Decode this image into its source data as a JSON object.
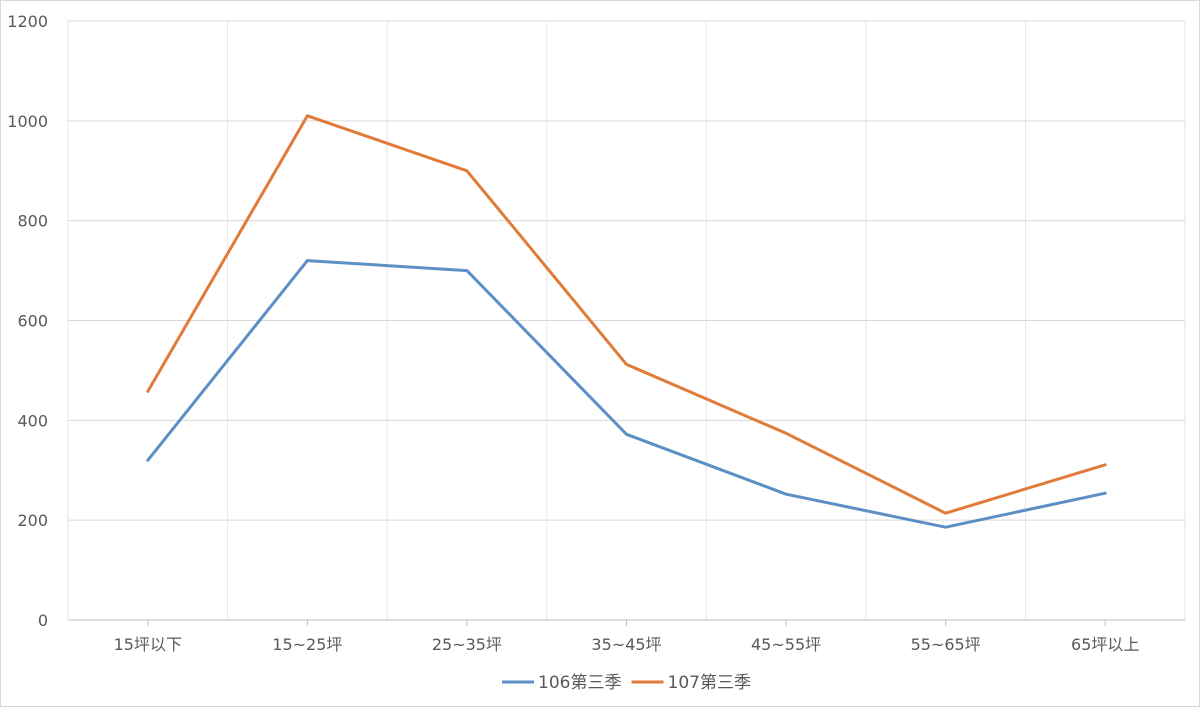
{
  "chart_data": {
    "type": "line",
    "categories": [
      "15坪以下",
      "15~25坪",
      "25~35坪",
      "35~45坪",
      "45~55坪",
      "55~65坪",
      "65坪以上"
    ],
    "series": [
      {
        "name": "106第三季",
        "color": "#5b8fc5",
        "values": [
          320,
          720,
          700,
          372,
          252,
          186,
          254
        ]
      },
      {
        "name": "107第三季",
        "color": "#e07b39",
        "values": [
          458,
          1010,
          900,
          512,
          374,
          214,
          311
        ]
      }
    ],
    "ylim": [
      0,
      1200
    ],
    "yticks": [
      0,
      200,
      400,
      600,
      800,
      1000,
      1200
    ],
    "grid": true,
    "legend_position": "bottom"
  }
}
